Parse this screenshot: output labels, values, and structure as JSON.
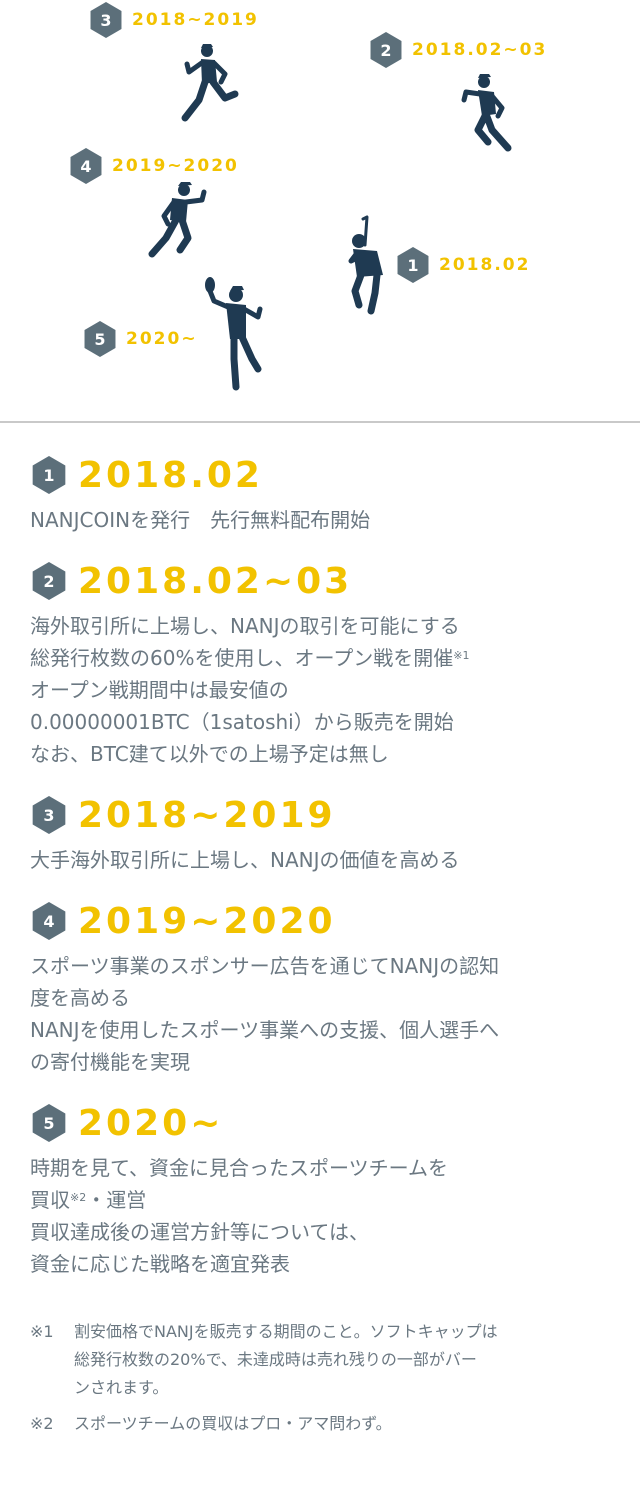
{
  "colors": {
    "accent": "#f2c200",
    "hex": "#5c6f7a",
    "text": "#6b7882",
    "player": "#1f3a52"
  },
  "markers": [
    {
      "num": "3",
      "date": "2018~2019",
      "icon": "baseball-running-player-icon"
    },
    {
      "num": "2",
      "date": "2018.02~03",
      "icon": "baseball-running-player-icon"
    },
    {
      "num": "4",
      "date": "2019~2020",
      "icon": "baseball-running-player-icon"
    },
    {
      "num": "1",
      "date": "2018.02",
      "icon": "baseball-batter-icon"
    },
    {
      "num": "5",
      "date": "2020~",
      "icon": "baseball-catching-player-icon"
    }
  ],
  "entries": [
    {
      "num": "1",
      "date": "2018.02",
      "lines": [
        "NANJCOINを発行　先行無料配布開始"
      ]
    },
    {
      "num": "2",
      "date": "2018.02~03",
      "lines": [
        "海外取引所に上場し、NANJの取引を可能にする",
        "総発行枚数の60%を使用し、オープン戦を開催",
        "オープン戦期間中は最安値の",
        "0.00000001BTC（1satoshi）から販売を開始",
        "なお、BTC建て以外での上場予定は無し"
      ],
      "sup1": "※1"
    },
    {
      "num": "3",
      "date": "2018~2019",
      "lines": [
        "大手海外取引所に上場し、NANJの価値を高める"
      ]
    },
    {
      "num": "4",
      "date": "2019~2020",
      "lines": [
        "スポーツ事業のスポンサー広告を通じてNANJの認知",
        "度を高める",
        "NANJを使用したスポーツ事業への支援、個人選手へ",
        "の寄付機能を実現"
      ]
    },
    {
      "num": "5",
      "date": "2020~",
      "lines": [
        "時期を見て、資金に見合ったスポーツチームを",
        "買収",
        "・運営",
        "買収達成後の運営方針等については、",
        "資金に応じた戦略を適宜発表"
      ],
      "sup2": "※2"
    }
  ],
  "notes": [
    {
      "mark": "※1",
      "lines": [
        "割安価格でNANJを販売する期間のこと。ソフトキャップは",
        "総発行枚数の20%で、未達成時は売れ残りの一部がバー",
        "ンされます。"
      ]
    },
    {
      "mark": "※2",
      "lines": [
        "スポーツチームの買収はプロ・アマ問わず。"
      ]
    }
  ]
}
